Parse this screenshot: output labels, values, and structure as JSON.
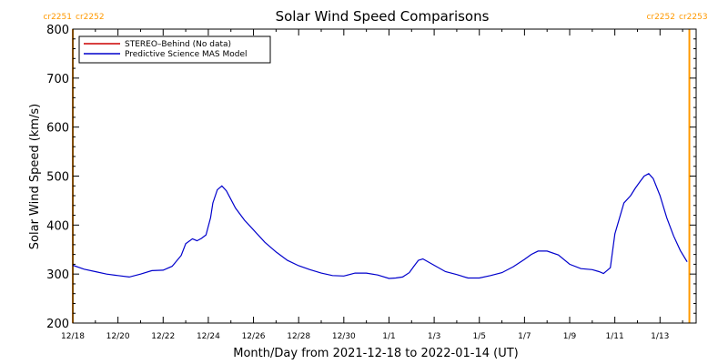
{
  "chart_data": {
    "type": "line",
    "title": "Solar Wind Speed Comparisons",
    "xlabel": "Month/Day from 2021-12-18 to 2022-01-14 (UT)",
    "ylabel": "Solar Wind Speed (km/s)",
    "ylim": [
      200,
      800
    ],
    "xlim_days": [
      0,
      27.6
    ],
    "y_ticks": [
      200,
      300,
      400,
      500,
      600,
      700,
      800
    ],
    "x_ticks": [
      {
        "day": 0,
        "label": "12/18"
      },
      {
        "day": 2,
        "label": "12/20"
      },
      {
        "day": 4,
        "label": "12/22"
      },
      {
        "day": 6,
        "label": "12/24"
      },
      {
        "day": 8,
        "label": "12/26"
      },
      {
        "day": 10,
        "label": "12/28"
      },
      {
        "day": 12,
        "label": "12/30"
      },
      {
        "day": 14,
        "label": "1/1"
      },
      {
        "day": 16,
        "label": "1/3"
      },
      {
        "day": 18,
        "label": "1/5"
      },
      {
        "day": 20,
        "label": "1/7"
      },
      {
        "day": 22,
        "label": "1/9"
      },
      {
        "day": 24,
        "label": "1/11"
      },
      {
        "day": 26,
        "label": "1/13"
      }
    ],
    "grid": false,
    "legend_position": "top-left",
    "carrington_markers": [
      {
        "day": 0,
        "left_label": "cr2251",
        "right_label": "cr2252",
        "label_side": "left"
      },
      {
        "day": 27.3,
        "left_label": "cr2252",
        "right_label": "cr2253",
        "label_side": "right"
      }
    ],
    "marker_color": "#ff9900",
    "series": [
      {
        "name": "STEREO–Behind (No data)",
        "color": "#cc0000",
        "x": [],
        "y": []
      },
      {
        "name": "Predictive Science MAS Model",
        "color": "#0000cc",
        "x": [
          0,
          0.5,
          1,
          1.5,
          2,
          2.5,
          3,
          3.5,
          4,
          4.4,
          4.8,
          5.0,
          5.3,
          5.5,
          5.7,
          5.9,
          6.1,
          6.2,
          6.4,
          6.6,
          6.8,
          7.2,
          7.6,
          8,
          8.5,
          9,
          9.5,
          10,
          10.5,
          11,
          11.5,
          12,
          12.5,
          13,
          13.5,
          14,
          14.3,
          14.6,
          14.9,
          15.1,
          15.3,
          15.5,
          16,
          16.5,
          17,
          17.5,
          18,
          18.5,
          19,
          19.5,
          20,
          20.3,
          20.6,
          21,
          21.5,
          22,
          22.5,
          23,
          23.3,
          23.5,
          23.8,
          24.0,
          24.4,
          24.7,
          24.9,
          25.1,
          25.3,
          25.5,
          25.7,
          26,
          26.3,
          26.6,
          26.9,
          27.2
        ],
        "y": [
          318,
          310,
          305,
          300,
          297,
          294,
          300,
          307,
          308,
          316,
          338,
          362,
          372,
          368,
          373,
          380,
          415,
          445,
          472,
          480,
          470,
          435,
          410,
          390,
          365,
          345,
          328,
          317,
          309,
          302,
          297,
          296,
          302,
          302,
          298,
          291,
          292,
          294,
          303,
          316,
          328,
          331,
          318,
          305,
          299,
          292,
          292,
          297,
          303,
          315,
          330,
          340,
          347,
          347,
          339,
          320,
          311,
          309,
          305,
          301,
          313,
          382,
          445,
          460,
          475,
          488,
          500,
          505,
          495,
          460,
          415,
          378,
          348,
          325
        ]
      }
    ]
  }
}
